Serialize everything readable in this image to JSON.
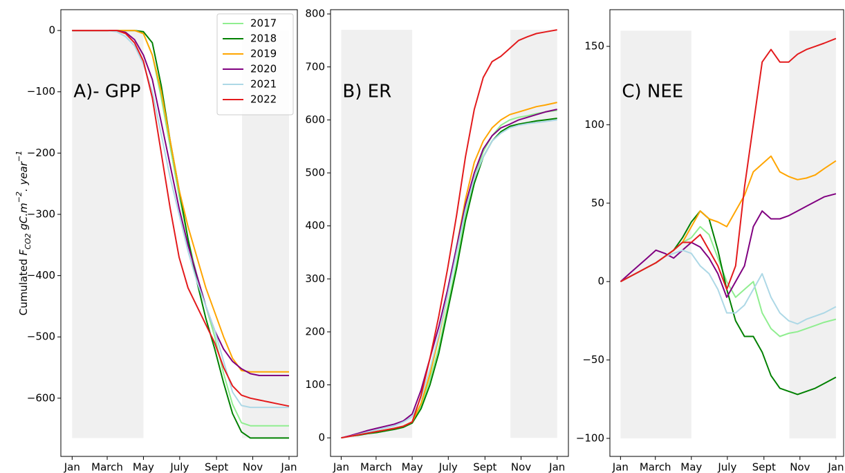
{
  "chart_data": [
    {
      "type": "line",
      "annotation": "A)- GPP",
      "ylabel": [
        {
          "text": "Cumulated "
        },
        {
          "text": "F",
          "style": "italic"
        },
        {
          "text": "CO2",
          "style": "sub"
        },
        {
          "text": " gC.m",
          "style": "italic"
        },
        {
          "text": "−2",
          "style": "sup"
        },
        {
          "text": ". year",
          "style": "italic"
        },
        {
          "text": "−1",
          "style": "sup"
        }
      ],
      "x": [
        0,
        15,
        30,
        45,
        60,
        75,
        90,
        105,
        120,
        135,
        150,
        165,
        180,
        195,
        210,
        225,
        240,
        255,
        270,
        285,
        300,
        315,
        330,
        345,
        365
      ],
      "xlim": [
        -19,
        379
      ],
      "xticks": [
        {
          "value": 0,
          "label": "Jan"
        },
        {
          "value": 59,
          "label": "March"
        },
        {
          "value": 120,
          "label": "May"
        },
        {
          "value": 181,
          "label": "July"
        },
        {
          "value": 243,
          "label": "Sept"
        },
        {
          "value": 304,
          "label": "Nov"
        },
        {
          "value": 365,
          "label": "Jan"
        }
      ],
      "ylim": [
        -695,
        34
      ],
      "yticks": [
        {
          "value": -600,
          "label": "−600"
        },
        {
          "value": -500,
          "label": "−500"
        },
        {
          "value": -400,
          "label": "−400"
        },
        {
          "value": -300,
          "label": "−300"
        },
        {
          "value": -200,
          "label": "−200"
        },
        {
          "value": -100,
          "label": "−100"
        },
        0
      ],
      "shaded_spans": [
        [
          0,
          120
        ],
        [
          286,
          365
        ]
      ],
      "shade_ylim": [
        -665,
        0
      ],
      "shade_color": "#f0f0f0",
      "legend": "upper right",
      "series": [
        {
          "name": "2017",
          "color": "#90ee90",
          "values": [
            0,
            0,
            0,
            0,
            0,
            0,
            0,
            0,
            -5,
            -40,
            -110,
            -190,
            -270,
            -340,
            -400,
            -450,
            -500,
            -560,
            -610,
            -640,
            -645,
            -645,
            -645,
            -645,
            -645
          ]
        },
        {
          "name": "2018",
          "color": "#008000",
          "values": [
            0,
            0,
            0,
            0,
            0,
            0,
            0,
            0,
            -2,
            -20,
            -90,
            -180,
            -260,
            -340,
            -410,
            -470,
            -520,
            -575,
            -625,
            -655,
            -665,
            -665,
            -665,
            -665,
            -665
          ]
        },
        {
          "name": "2019",
          "color": "#ffa500",
          "values": [
            0,
            0,
            0,
            0,
            0,
            0,
            0,
            0,
            -5,
            -40,
            -100,
            -180,
            -260,
            -320,
            -370,
            -420,
            -460,
            -500,
            -535,
            -555,
            -557,
            -557,
            -557,
            -557,
            -557
          ]
        },
        {
          "name": "2020",
          "color": "#800080",
          "values": [
            0,
            0,
            0,
            0,
            0,
            0,
            -3,
            -15,
            -40,
            -80,
            -150,
            -220,
            -290,
            -350,
            -400,
            -450,
            -490,
            -520,
            -540,
            -552,
            -560,
            -563,
            -563,
            -563,
            -563
          ]
        },
        {
          "name": "2021",
          "color": "#add8e6",
          "values": [
            0,
            0,
            0,
            0,
            0,
            -2,
            -10,
            -25,
            -55,
            -100,
            -170,
            -240,
            -300,
            -360,
            -410,
            -450,
            -490,
            -540,
            -590,
            -612,
            -615,
            -615,
            -615,
            -615,
            -615
          ]
        },
        {
          "name": "2022",
          "color": "#e31a1c",
          "values": [
            0,
            0,
            0,
            0,
            0,
            0,
            -5,
            -20,
            -50,
            -110,
            -200,
            -290,
            -370,
            -420,
            -450,
            -480,
            -510,
            -550,
            -580,
            -595,
            -600,
            -603,
            -606,
            -609,
            -613
          ]
        }
      ]
    },
    {
      "type": "line",
      "annotation": "B) ER",
      "x": [
        0,
        15,
        30,
        45,
        60,
        75,
        90,
        105,
        120,
        135,
        150,
        165,
        180,
        195,
        210,
        225,
        240,
        255,
        270,
        285,
        300,
        315,
        330,
        345,
        365
      ],
      "xlim": [
        -18,
        384
      ],
      "xticks": [
        {
          "value": 0,
          "label": "Jan"
        },
        {
          "value": 59,
          "label": "March"
        },
        {
          "value": 120,
          "label": "May"
        },
        {
          "value": 181,
          "label": "July"
        },
        {
          "value": 243,
          "label": "Sept"
        },
        {
          "value": 304,
          "label": "Nov"
        },
        {
          "value": 365,
          "label": "Jan"
        }
      ],
      "ylim": [
        -35,
        808
      ],
      "yticks": [
        0,
        100,
        200,
        300,
        400,
        500,
        600,
        700,
        800
      ],
      "shaded_spans": [
        [
          0,
          120
        ],
        [
          286,
          365
        ]
      ],
      "shade_ylim": [
        0,
        770
      ],
      "shade_color": "#f0f0f0",
      "series": [
        {
          "name": "2017",
          "color": "#90ee90",
          "values": [
            0,
            3,
            6,
            9,
            12,
            15,
            18,
            22,
            30,
            60,
            110,
            170,
            250,
            330,
            420,
            490,
            540,
            570,
            590,
            600,
            605,
            608,
            612,
            615,
            618
          ]
        },
        {
          "name": "2018",
          "color": "#008000",
          "values": [
            0,
            3,
            5,
            8,
            10,
            13,
            16,
            20,
            28,
            55,
            100,
            160,
            240,
            320,
            410,
            480,
            530,
            560,
            578,
            588,
            592,
            595,
            598,
            600,
            603
          ]
        },
        {
          "name": "2019",
          "color": "#ffa500",
          "values": [
            0,
            3,
            6,
            9,
            12,
            15,
            18,
            22,
            30,
            65,
            120,
            190,
            270,
            360,
            450,
            520,
            560,
            585,
            600,
            610,
            615,
            620,
            625,
            628,
            633
          ]
        },
        {
          "name": "2020",
          "color": "#800080",
          "values": [
            0,
            4,
            9,
            14,
            18,
            22,
            26,
            32,
            45,
            90,
            150,
            210,
            280,
            360,
            440,
            500,
            545,
            570,
            585,
            592,
            600,
            605,
            610,
            615,
            620
          ]
        },
        {
          "name": "2021",
          "color": "#add8e6",
          "values": [
            0,
            3,
            7,
            11,
            15,
            19,
            23,
            30,
            40,
            75,
            130,
            195,
            270,
            350,
            430,
            490,
            530,
            560,
            575,
            585,
            590,
            593,
            595,
            597,
            600
          ]
        },
        {
          "name": "2022",
          "color": "#e31a1c",
          "values": [
            0,
            3,
            6,
            9,
            12,
            15,
            18,
            22,
            30,
            80,
            150,
            230,
            320,
            420,
            530,
            620,
            680,
            710,
            720,
            735,
            750,
            757,
            763,
            766,
            770
          ]
        }
      ]
    },
    {
      "type": "line",
      "annotation": "C) NEE",
      "x": [
        0,
        15,
        30,
        45,
        60,
        75,
        90,
        105,
        120,
        135,
        150,
        165,
        180,
        195,
        210,
        225,
        240,
        255,
        270,
        285,
        300,
        315,
        330,
        345,
        365
      ],
      "xlim": [
        -18,
        378
      ],
      "xticks": [
        {
          "value": 0,
          "label": "Jan"
        },
        {
          "value": 59,
          "label": "March"
        },
        {
          "value": 120,
          "label": "May"
        },
        {
          "value": 181,
          "label": "July"
        },
        {
          "value": 243,
          "label": "Sept"
        },
        {
          "value": 304,
          "label": "Nov"
        },
        {
          "value": 365,
          "label": "Jan"
        }
      ],
      "ylim": [
        -111.5,
        173.4
      ],
      "yticks": [
        {
          "value": -100,
          "label": "−100"
        },
        {
          "value": -50,
          "label": "−50"
        },
        0,
        50,
        100,
        150
      ],
      "shaded_spans": [
        [
          0,
          120
        ],
        [
          286,
          365
        ]
      ],
      "shade_ylim": [
        -100,
        160
      ],
      "shade_color": "#f0f0f0",
      "series": [
        {
          "name": "2017",
          "color": "#90ee90",
          "values": [
            0,
            3,
            6,
            9,
            12,
            16,
            20,
            25,
            28,
            35,
            30,
            15,
            0,
            -10,
            -5,
            0,
            -20,
            -30,
            -35,
            -33,
            -32,
            -30,
            -28,
            -26,
            -24
          ]
        },
        {
          "name": "2018",
          "color": "#008000",
          "values": [
            0,
            3,
            6,
            9,
            12,
            16,
            20,
            28,
            38,
            45,
            40,
            20,
            -5,
            -25,
            -35,
            -35,
            -45,
            -60,
            -68,
            -70,
            -72,
            -70,
            -68,
            -65,
            -61
          ]
        },
        {
          "name": "2019",
          "color": "#ffa500",
          "values": [
            0,
            3,
            6,
            9,
            12,
            16,
            20,
            25,
            35,
            45,
            40,
            38,
            35,
            45,
            55,
            70,
            75,
            80,
            70,
            67,
            65,
            66,
            68,
            72,
            77
          ]
        },
        {
          "name": "2020",
          "color": "#800080",
          "values": [
            0,
            5,
            10,
            15,
            20,
            18,
            15,
            20,
            25,
            22,
            15,
            5,
            -10,
            0,
            10,
            35,
            45,
            40,
            40,
            42,
            45,
            48,
            51,
            54,
            56
          ]
        },
        {
          "name": "2021",
          "color": "#add8e6",
          "values": [
            0,
            3,
            6,
            9,
            12,
            16,
            18,
            20,
            18,
            10,
            5,
            -5,
            -20,
            -20,
            -15,
            -5,
            5,
            -10,
            -20,
            -25,
            -27,
            -24,
            -22,
            -20,
            -16
          ]
        },
        {
          "name": "2022",
          "color": "#e31a1c",
          "values": [
            0,
            3,
            6,
            9,
            12,
            16,
            20,
            25,
            25,
            30,
            20,
            10,
            -5,
            10,
            60,
            100,
            140,
            148,
            140,
            140,
            145,
            148,
            150,
            152,
            155
          ]
        }
      ]
    }
  ]
}
